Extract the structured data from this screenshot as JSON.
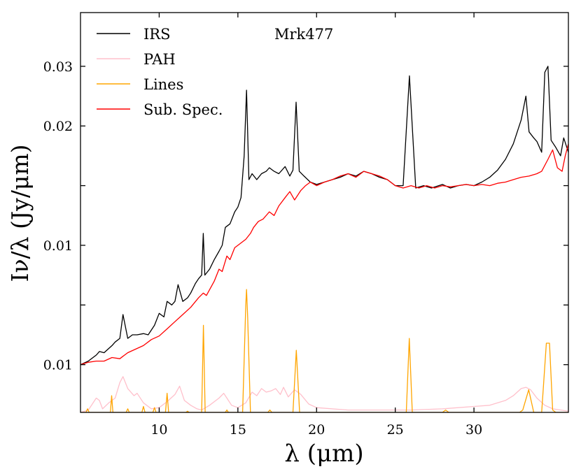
{
  "chart_data": {
    "type": "line",
    "title": "",
    "annotation": "Mrk477",
    "xlabel": "λ (μm)",
    "ylabel": "Iν/λ (Jy/μm)",
    "xlim": [
      5,
      36
    ],
    "ylim": [
      0.001,
      0.0345
    ],
    "x_ticks": [
      10,
      15,
      20,
      25,
      30
    ],
    "x_tick_labels": [
      "10",
      "15",
      "20",
      "25",
      "30"
    ],
    "y_ticks": [
      0.005,
      0.01,
      0.015,
      0.02,
      0.025,
      0.03
    ],
    "y_tick_labels": [
      "0.01",
      "",
      "0.01",
      "",
      "0.02",
      "0.03"
    ],
    "legend_position": "top-left",
    "series": [
      {
        "name": "IRS",
        "color": "#000000",
        "x": [
          5.0,
          5.5,
          6.0,
          6.2,
          6.5,
          7.0,
          7.2,
          7.5,
          7.7,
          8.0,
          8.3,
          8.6,
          9.0,
          9.3,
          9.7,
          10.0,
          10.3,
          10.5,
          10.8,
          11.0,
          11.2,
          11.5,
          11.8,
          12.0,
          12.3,
          12.5,
          12.7,
          12.8,
          12.9,
          13.2,
          13.5,
          13.8,
          14.0,
          14.2,
          14.5,
          14.8,
          15.0,
          15.2,
          15.4,
          15.55,
          15.7,
          15.9,
          16.2,
          16.5,
          16.8,
          17.0,
          17.3,
          17.6,
          18.0,
          18.3,
          18.5,
          18.7,
          18.9,
          19.2,
          19.6,
          20.0,
          20.5,
          21.0,
          21.5,
          22.0,
          22.5,
          23.0,
          23.5,
          24.0,
          24.5,
          25.0,
          25.5,
          25.9,
          26.3,
          26.8,
          27.3,
          28.0,
          28.5,
          29.0,
          29.5,
          30.0,
          30.5,
          31.0,
          31.5,
          32.0,
          32.5,
          33.0,
          33.3,
          33.5,
          33.8,
          34.0,
          34.3,
          34.5,
          34.7,
          34.9,
          35.2,
          35.5,
          35.7,
          36.0
        ],
        "y": [
          0.005,
          0.0053,
          0.0058,
          0.0061,
          0.006,
          0.0066,
          0.0069,
          0.0072,
          0.0092,
          0.0072,
          0.0075,
          0.0075,
          0.0076,
          0.0075,
          0.0083,
          0.0093,
          0.009,
          0.0103,
          0.01,
          0.0103,
          0.0117,
          0.0103,
          0.0106,
          0.011,
          0.0118,
          0.0122,
          0.0125,
          0.016,
          0.0125,
          0.013,
          0.0138,
          0.0145,
          0.015,
          0.0165,
          0.0168,
          0.0178,
          0.0182,
          0.019,
          0.0225,
          0.028,
          0.0205,
          0.021,
          0.0205,
          0.021,
          0.0212,
          0.0215,
          0.0212,
          0.021,
          0.0216,
          0.0208,
          0.0213,
          0.027,
          0.0212,
          0.0208,
          0.0203,
          0.0201,
          0.0203,
          0.0205,
          0.0207,
          0.021,
          0.0208,
          0.0212,
          0.021,
          0.0207,
          0.0205,
          0.02,
          0.02,
          0.0292,
          0.0198,
          0.02,
          0.0198,
          0.0201,
          0.0198,
          0.02,
          0.0201,
          0.02,
          0.0203,
          0.0207,
          0.0213,
          0.0222,
          0.0235,
          0.0255,
          0.0275,
          0.0245,
          0.024,
          0.0237,
          0.0228,
          0.0295,
          0.03,
          0.0238,
          0.0232,
          0.0225,
          0.024,
          0.0228
        ]
      },
      {
        "name": "PAH",
        "color": "#ffc0cb",
        "x": [
          5.0,
          5.5,
          6.0,
          6.2,
          6.4,
          6.8,
          7.2,
          7.5,
          7.7,
          8.0,
          8.4,
          8.6,
          9.0,
          9.5,
          10.0,
          10.5,
          11.0,
          11.3,
          11.6,
          12.0,
          12.4,
          12.7,
          13.2,
          13.8,
          14.1,
          14.3,
          14.6,
          15.0,
          15.5,
          15.9,
          16.2,
          16.5,
          16.8,
          17.1,
          17.4,
          17.7,
          17.9,
          18.2,
          18.6,
          19.0,
          19.5,
          20.0,
          22.0,
          24.0,
          26.0,
          28.0,
          30.0,
          31.0,
          32.0,
          32.5,
          33.0,
          33.3,
          33.6,
          34.0,
          34.5,
          35.0,
          35.5,
          36.0
        ],
        "y": [
          0.001,
          0.0012,
          0.0022,
          0.002,
          0.0013,
          0.0018,
          0.0022,
          0.0035,
          0.004,
          0.003,
          0.0024,
          0.0026,
          0.0018,
          0.0013,
          0.0014,
          0.0019,
          0.0025,
          0.0032,
          0.002,
          0.0016,
          0.0013,
          0.0012,
          0.0016,
          0.0022,
          0.0026,
          0.0022,
          0.0016,
          0.0014,
          0.0018,
          0.0027,
          0.0024,
          0.003,
          0.0027,
          0.0028,
          0.003,
          0.0025,
          0.0031,
          0.0023,
          0.0029,
          0.0025,
          0.0017,
          0.0014,
          0.0012,
          0.0012,
          0.0012,
          0.0013,
          0.0015,
          0.0016,
          0.002,
          0.0024,
          0.003,
          0.0031,
          0.0029,
          0.0022,
          0.0016,
          0.0013,
          0.0012,
          0.0011
        ]
      },
      {
        "name": "Lines",
        "color": "#ffa500",
        "x": [
          5.0,
          5.35,
          5.45,
          5.55,
          6.9,
          6.98,
          7.06,
          7.9,
          8.0,
          8.1,
          8.9,
          9.0,
          9.1,
          9.6,
          9.7,
          9.8,
          10.4,
          10.5,
          10.6,
          11.7,
          11.8,
          11.9,
          12.7,
          12.81,
          12.92,
          14.2,
          14.3,
          14.4,
          15.3,
          15.5,
          15.55,
          15.62,
          15.8,
          16.9,
          17.03,
          17.16,
          18.5,
          18.71,
          18.92,
          25.7,
          25.89,
          26.08,
          28.0,
          28.2,
          28.4,
          32.9,
          33.1,
          33.48,
          33.8,
          34.3,
          34.6,
          34.8,
          35.0,
          35.2,
          36.0
        ],
        "y": [
          0.001,
          0.001,
          0.0013,
          0.001,
          0.001,
          0.0024,
          0.001,
          0.001,
          0.0013,
          0.001,
          0.001,
          0.0015,
          0.001,
          0.001,
          0.0014,
          0.001,
          0.001,
          0.0026,
          0.001,
          0.001,
          0.0011,
          0.001,
          0.001,
          0.0083,
          0.001,
          0.001,
          0.0012,
          0.001,
          0.001,
          0.01,
          0.0113,
          0.009,
          0.001,
          0.001,
          0.0012,
          0.001,
          0.001,
          0.0062,
          0.001,
          0.001,
          0.0072,
          0.001,
          0.001,
          0.0012,
          0.001,
          0.001,
          0.0012,
          0.0029,
          0.001,
          0.001,
          0.0068,
          0.0068,
          0.0012,
          0.001,
          0.001
        ]
      },
      {
        "name": "Sub. Spec.",
        "color": "#ff0000",
        "x": [
          5.0,
          5.5,
          6.0,
          6.5,
          7.0,
          7.5,
          7.7,
          8.0,
          8.5,
          9.0,
          9.5,
          10.0,
          10.5,
          11.0,
          11.5,
          12.0,
          12.5,
          12.8,
          13.0,
          13.5,
          13.8,
          14.0,
          14.3,
          14.5,
          14.8,
          15.0,
          15.5,
          15.8,
          16.0,
          16.3,
          16.6,
          17.0,
          17.3,
          17.6,
          18.0,
          18.3,
          18.6,
          19.0,
          19.3,
          19.6,
          20.0,
          20.5,
          21.0,
          21.5,
          22.0,
          22.5,
          23.0,
          23.5,
          24.0,
          24.5,
          25.0,
          25.5,
          26.0,
          26.5,
          27.0,
          27.5,
          28.0,
          28.5,
          29.0,
          29.5,
          30.0,
          30.5,
          31.0,
          31.5,
          32.0,
          32.5,
          33.0,
          33.5,
          34.0,
          34.3,
          34.7,
          35.0,
          35.3,
          35.6,
          35.8,
          36.0
        ],
        "y": [
          0.005,
          0.0052,
          0.0053,
          0.0053,
          0.0056,
          0.0055,
          0.0057,
          0.006,
          0.0063,
          0.0066,
          0.0071,
          0.0074,
          0.008,
          0.0086,
          0.0092,
          0.0098,
          0.0106,
          0.011,
          0.0108,
          0.012,
          0.013,
          0.0128,
          0.0141,
          0.0138,
          0.0148,
          0.015,
          0.0155,
          0.016,
          0.0165,
          0.017,
          0.0172,
          0.0178,
          0.0175,
          0.0183,
          0.019,
          0.0195,
          0.0188,
          0.0196,
          0.02,
          0.0203,
          0.02,
          0.0203,
          0.0205,
          0.0208,
          0.021,
          0.0207,
          0.0212,
          0.021,
          0.0208,
          0.0205,
          0.02,
          0.0198,
          0.02,
          0.0198,
          0.02,
          0.0198,
          0.02,
          0.0199,
          0.02,
          0.0201,
          0.02,
          0.0201,
          0.02,
          0.0202,
          0.0203,
          0.0205,
          0.0207,
          0.0208,
          0.021,
          0.0212,
          0.0222,
          0.023,
          0.0215,
          0.0212,
          0.0225,
          0.0235
        ]
      }
    ]
  }
}
